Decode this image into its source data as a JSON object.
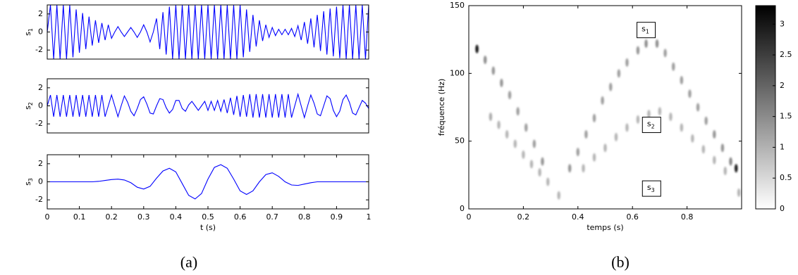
{
  "chart_data": [
    {
      "type": "line",
      "ylabel": {
        "base": "s",
        "sub": "1"
      },
      "xlim": [
        0,
        1
      ],
      "ylim": [
        -3,
        3
      ],
      "yticks": [
        -2,
        0,
        2
      ],
      "x": [
        0,
        0.01,
        0.02,
        0.03,
        0.04,
        0.05,
        0.06,
        0.07,
        0.08,
        0.09,
        0.1,
        0.11,
        0.12,
        0.13,
        0.14,
        0.15,
        0.16,
        0.17,
        0.18,
        0.19,
        0.2,
        0.21,
        0.22,
        0.23,
        0.24,
        0.25,
        0.26,
        0.27,
        0.28,
        0.29,
        0.3,
        0.31,
        0.32,
        0.33,
        0.34,
        0.35,
        0.36,
        0.37,
        0.38,
        0.39,
        0.4,
        0.41,
        0.42,
        0.43,
        0.44,
        0.45,
        0.46,
        0.47,
        0.48,
        0.49,
        0.5,
        0.51,
        0.52,
        0.53,
        0.54,
        0.55,
        0.56,
        0.57,
        0.58,
        0.59,
        0.6,
        0.61,
        0.62,
        0.63,
        0.64,
        0.65,
        0.66,
        0.67,
        0.68,
        0.69,
        0.7,
        0.71,
        0.72,
        0.73,
        0.74,
        0.75,
        0.76,
        0.77,
        0.78,
        0.79,
        0.8,
        0.81,
        0.82,
        0.83,
        0.84,
        0.85,
        0.86,
        0.87,
        0.88,
        0.89,
        0.9,
        0.91,
        0.92,
        0.93,
        0.94,
        0.95,
        0.96,
        0.97,
        0.98,
        0.99,
        1
      ],
      "series": [
        {
          "color": "#0000ff",
          "values": [
            0,
            3,
            -3,
            3,
            -3,
            3,
            -3,
            3,
            -2.8,
            2.5,
            -2.3,
            2.1,
            -1.9,
            1.7,
            -1.5,
            1.3,
            -1.2,
            1.0,
            -0.9,
            0.8,
            -0.7,
            0,
            0.6,
            0,
            -0.5,
            0,
            0.5,
            0,
            -0.6,
            0,
            0.8,
            0,
            -1.1,
            0,
            1.5,
            -1.9,
            2.2,
            -2.5,
            2.8,
            -3,
            3,
            -3,
            3,
            -3,
            3,
            -3,
            3,
            -3,
            3,
            -3,
            3,
            -3,
            3,
            -3,
            3,
            -3,
            3,
            -3,
            3,
            -3,
            3,
            -2.8,
            2.5,
            -2.2,
            1.9,
            -1.6,
            1.3,
            -1.0,
            0.8,
            -0.6,
            0.5,
            -0.4,
            0.3,
            -0.3,
            0.3,
            -0.3,
            0.4,
            -0.5,
            0.7,
            -0.9,
            1.1,
            -1.3,
            1.5,
            -1.7,
            1.9,
            -2.1,
            2.3,
            -2.5,
            2.6,
            -2.7,
            2.8,
            -2.9,
            3,
            -3,
            3,
            -3,
            3,
            -3,
            3,
            -3,
            3
          ]
        }
      ]
    },
    {
      "type": "line",
      "ylabel": {
        "base": "s",
        "sub": "2"
      },
      "xlim": [
        0,
        1
      ],
      "ylim": [
        -3,
        3
      ],
      "yticks": [
        -2,
        0,
        2
      ],
      "x": [
        0,
        0.01,
        0.02,
        0.03,
        0.04,
        0.05,
        0.06,
        0.07,
        0.08,
        0.09,
        0.1,
        0.11,
        0.12,
        0.13,
        0.14,
        0.15,
        0.16,
        0.17,
        0.18,
        0.19,
        0.2,
        0.21,
        0.22,
        0.23,
        0.24,
        0.25,
        0.26,
        0.27,
        0.28,
        0.29,
        0.3,
        0.31,
        0.32,
        0.33,
        0.34,
        0.35,
        0.36,
        0.37,
        0.38,
        0.39,
        0.4,
        0.41,
        0.42,
        0.43,
        0.44,
        0.45,
        0.46,
        0.47,
        0.48,
        0.49,
        0.5,
        0.51,
        0.52,
        0.53,
        0.54,
        0.55,
        0.56,
        0.57,
        0.58,
        0.59,
        0.6,
        0.61,
        0.62,
        0.63,
        0.64,
        0.65,
        0.66,
        0.67,
        0.68,
        0.69,
        0.7,
        0.71,
        0.72,
        0.73,
        0.74,
        0.75,
        0.76,
        0.77,
        0.78,
        0.79,
        0.8,
        0.81,
        0.82,
        0.83,
        0.84,
        0.85,
        0.86,
        0.87,
        0.88,
        0.89,
        0.9,
        0.91,
        0.92,
        0.93,
        0.94,
        0.95,
        0.96,
        0.97,
        0.98,
        0.99,
        1
      ],
      "series": [
        {
          "color": "#0000ff",
          "values": [
            0,
            1.2,
            -1.2,
            1.2,
            -1.2,
            1.2,
            -1.2,
            1.2,
            -1.2,
            1.2,
            -1.2,
            1.2,
            -1.2,
            1.2,
            -1.2,
            1.2,
            -1.2,
            1.2,
            -1.2,
            0,
            1.2,
            0,
            -1.2,
            0,
            1.1,
            0.4,
            -0.6,
            -1.1,
            -0.3,
            0.7,
            1.0,
            0.2,
            -0.8,
            -0.9,
            0,
            0.8,
            0.7,
            -0.2,
            -0.8,
            -0.4,
            0.6,
            0.6,
            -0.3,
            -0.6,
            0.1,
            0.5,
            0,
            -0.5,
            0,
            0.5,
            -0.5,
            0.5,
            -0.5,
            0.6,
            -0.6,
            0.7,
            -0.8,
            0.9,
            -1.0,
            1.1,
            -1.2,
            1.2,
            -1.2,
            1.3,
            -1.3,
            1.3,
            -1.3,
            1.3,
            -1.3,
            1.3,
            -1.3,
            1.3,
            -1.3,
            1.3,
            -1.3,
            1.3,
            -1.3,
            0,
            1.3,
            0,
            -1.3,
            0,
            1.2,
            0.3,
            -0.9,
            -1.1,
            0,
            1.1,
            0.8,
            -0.5,
            -1.2,
            -0.6,
            0.7,
            1.2,
            0.4,
            -0.8,
            -1.0,
            -0.2,
            0.6,
            0.3,
            -0.3
          ]
        }
      ]
    },
    {
      "type": "line",
      "ylabel": {
        "base": "s",
        "sub": "3"
      },
      "xlabel": "t (s)",
      "xlim": [
        0,
        1
      ],
      "ylim": [
        -3,
        3
      ],
      "yticks": [
        -2,
        0,
        2
      ],
      "xticks": [
        0,
        0.1,
        0.2,
        0.3,
        0.4,
        0.5,
        0.6,
        0.7,
        0.8,
        0.9,
        1
      ],
      "x": [
        0,
        0.02,
        0.04,
        0.06,
        0.08,
        0.1,
        0.12,
        0.14,
        0.16,
        0.18,
        0.2,
        0.22,
        0.24,
        0.26,
        0.28,
        0.3,
        0.32,
        0.34,
        0.36,
        0.38,
        0.4,
        0.42,
        0.44,
        0.46,
        0.48,
        0.5,
        0.52,
        0.54,
        0.56,
        0.58,
        0.6,
        0.62,
        0.64,
        0.66,
        0.68,
        0.7,
        0.72,
        0.74,
        0.76,
        0.78,
        0.8,
        0.82,
        0.84,
        0.86,
        0.88,
        0.9,
        0.92,
        0.94,
        0.96,
        0.98,
        1
      ],
      "series": [
        {
          "color": "#0000ff",
          "values": [
            0,
            0,
            0,
            0,
            0,
            0,
            0,
            0,
            0.05,
            0.15,
            0.25,
            0.3,
            0.2,
            -0.1,
            -0.6,
            -0.8,
            -0.5,
            0.4,
            1.2,
            1.5,
            1.1,
            -0.2,
            -1.5,
            -1.9,
            -1.3,
            0.3,
            1.6,
            1.9,
            1.5,
            0.3,
            -1.0,
            -1.4,
            -1.0,
            0,
            0.8,
            1.0,
            0.6,
            0,
            -0.35,
            -0.4,
            -0.25,
            -0.1,
            0,
            0,
            0,
            0,
            0,
            0,
            0,
            0,
            0
          ]
        }
      ]
    },
    {
      "type": "spectrogram",
      "xlabel": "temps (s)",
      "ylabel": "fréquence (Hz)",
      "xlim": [
        0,
        1
      ],
      "ylim": [
        0,
        150
      ],
      "xticks": [
        0,
        0.2,
        0.4,
        0.6,
        0.8
      ],
      "yticks": [
        0,
        50,
        100,
        150
      ],
      "clim": [
        0,
        3.3
      ],
      "cticks": [
        0,
        0.5,
        1,
        1.5,
        2,
        2.5,
        3
      ],
      "x": [
        0.03,
        0.06,
        0.09,
        0.12,
        0.15,
        0.18,
        0.21,
        0.24,
        0.27,
        0.37,
        0.4,
        0.43,
        0.46,
        0.49,
        0.52,
        0.55,
        0.58,
        0.62,
        0.65,
        0.69,
        0.72,
        0.75,
        0.78,
        0.81,
        0.84,
        0.87,
        0.9,
        0.93,
        0.96,
        0.98,
        0.08,
        0.11,
        0.14,
        0.17,
        0.2,
        0.23,
        0.26,
        0.29,
        0.42,
        0.46,
        0.5,
        0.54,
        0.58,
        0.62,
        0.66,
        0.7,
        0.74,
        0.78,
        0.82,
        0.86,
        0.9,
        0.94,
        0.33,
        0.99
      ],
      "y": [
        118,
        110,
        102,
        93,
        84,
        72,
        60,
        48,
        35,
        30,
        42,
        55,
        67,
        80,
        90,
        100,
        108,
        117,
        122,
        122,
        115,
        105,
        95,
        85,
        75,
        65,
        55,
        45,
        35,
        30,
        68,
        62,
        55,
        48,
        40,
        33,
        27,
        20,
        30,
        38,
        45,
        53,
        60,
        66,
        70,
        72,
        68,
        60,
        52,
        44,
        36,
        28,
        10,
        12
      ],
      "values": [
        3.2,
        1.5,
        1.4,
        1.4,
        1.3,
        1.3,
        1.3,
        1.3,
        1.4,
        1.4,
        1.3,
        1.3,
        1.3,
        1.3,
        1.3,
        1.3,
        1.3,
        1.4,
        1.5,
        1.5,
        1.3,
        1.3,
        1.3,
        1.3,
        1.3,
        1.3,
        1.4,
        1.4,
        1.6,
        3.0,
        1.1,
        1.0,
        1.0,
        1.0,
        1.0,
        1.0,
        1.0,
        1.0,
        1.0,
        1.0,
        1.0,
        1.0,
        1.0,
        1.0,
        1.0,
        1.0,
        1.0,
        1.0,
        1.0,
        1.0,
        1.0,
        1.0,
        1.0,
        1.0
      ],
      "annotations": [
        {
          "base": "s",
          "sub": "1"
        },
        {
          "base": "s",
          "sub": "2"
        },
        {
          "base": "s",
          "sub": "3"
        }
      ]
    }
  ],
  "captions": [
    "(a)",
    "(b)"
  ]
}
